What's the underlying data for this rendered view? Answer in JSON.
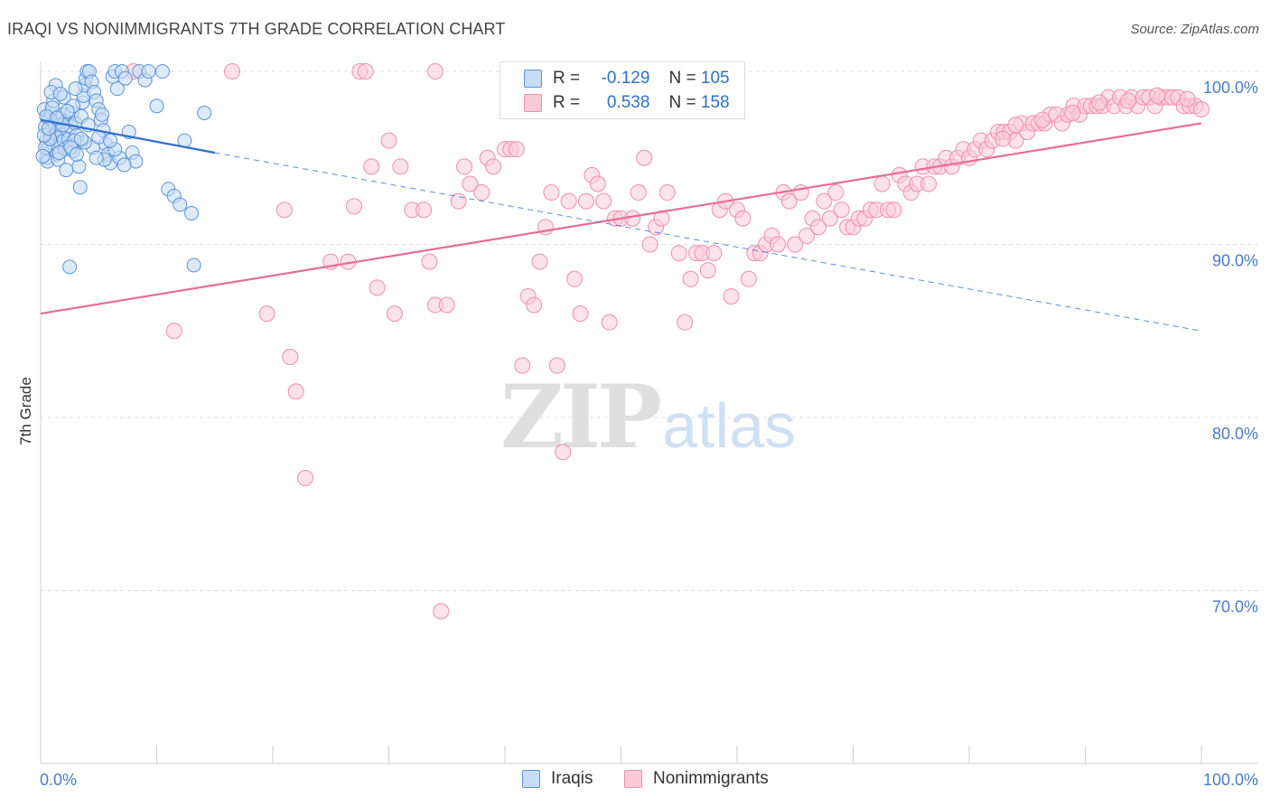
{
  "title": "IRAQI VS NONIMMIGRANTS 7TH GRADE CORRELATION CHART",
  "source": "Source: ZipAtlas.com",
  "watermark": {
    "zip": "ZIP",
    "atlas": "atlas"
  },
  "legend_stats": {
    "iraqis": {
      "r_label": "R =",
      "r": "-0.129",
      "n_label": "N =",
      "n": "105"
    },
    "nonimmigrants": {
      "r_label": "R =",
      "r": "0.538",
      "n_label": "N =",
      "n": "158"
    }
  },
  "colors": {
    "iraqis_fill": "#c7dcf5",
    "iraqis_stroke": "#5b93d6",
    "iraqis_line": "#2f6fcf",
    "non_fill": "#f9cbd9",
    "non_stroke": "#ee8fae",
    "non_line": "#e86c97",
    "grid": "#dedede",
    "axis_text": "#4a7cc2"
  },
  "chart_data": {
    "type": "scatter",
    "title": "IRAQI VS NONIMMIGRANTS 7TH GRADE CORRELATION CHART",
    "xlabel": "",
    "ylabel": "7th Grade",
    "xlim": [
      0,
      100
    ],
    "ylim": [
      61,
      101
    ],
    "x_tick_labels": [
      "0.0%",
      "100.0%"
    ],
    "y_ticks": [
      70,
      80,
      90,
      100
    ],
    "y_tick_labels": [
      "70.0%",
      "80.0%",
      "90.0%",
      "100.0%"
    ],
    "legend": [
      "Iraqis",
      "Nonimmigrants"
    ],
    "series": [
      {
        "name": "Iraqis",
        "trend": {
          "x0": 0,
          "y0": 97.2,
          "x1": 15,
          "y1": 95.3,
          "dash_x1": 100,
          "dash_y1": 85.0
        },
        "points": [
          [
            0.3,
            97.8
          ],
          [
            0.4,
            96.8
          ],
          [
            0.5,
            96.0
          ],
          [
            0.6,
            95.5
          ],
          [
            0.5,
            95.0
          ],
          [
            0.7,
            97.3
          ],
          [
            0.8,
            96.5
          ],
          [
            0.9,
            97.6
          ],
          [
            1.0,
            96.2
          ],
          [
            1.1,
            95.8
          ],
          [
            1.2,
            97.0
          ],
          [
            1.3,
            96.4
          ],
          [
            1.4,
            95.2
          ],
          [
            1.5,
            97.4
          ],
          [
            1.6,
            96.9
          ],
          [
            1.7,
            95.9
          ],
          [
            1.8,
            96.3
          ],
          [
            1.9,
            97.5
          ],
          [
            2.0,
            96.0
          ],
          [
            2.1,
            95.5
          ],
          [
            2.2,
            97.1
          ],
          [
            2.3,
            96.6
          ],
          [
            2.4,
            96.1
          ],
          [
            2.5,
            95.7
          ],
          [
            2.6,
            96.8
          ],
          [
            2.7,
            97.6
          ],
          [
            2.8,
            95.4
          ],
          [
            3.0,
            97.0
          ],
          [
            3.1,
            96.3
          ],
          [
            3.2,
            95.9
          ],
          [
            3.3,
            94.5
          ],
          [
            3.5,
            97.4
          ],
          [
            3.6,
            98.2
          ],
          [
            3.7,
            98.6
          ],
          [
            3.8,
            99.2
          ],
          [
            3.9,
            99.6
          ],
          [
            4.0,
            100.0
          ],
          [
            4.2,
            100.0
          ],
          [
            4.4,
            99.4
          ],
          [
            4.6,
            98.8
          ],
          [
            4.8,
            98.3
          ],
          [
            5.0,
            97.8
          ],
          [
            5.2,
            97.2
          ],
          [
            5.4,
            96.6
          ],
          [
            5.6,
            95.8
          ],
          [
            5.8,
            95.2
          ],
          [
            6.0,
            94.7
          ],
          [
            6.2,
            99.7
          ],
          [
            6.4,
            100.0
          ],
          [
            6.6,
            99.0
          ],
          [
            7.0,
            100.0
          ],
          [
            7.3,
            99.6
          ],
          [
            7.6,
            96.5
          ],
          [
            7.9,
            95.3
          ],
          [
            8.2,
            94.8
          ],
          [
            8.5,
            100.0
          ],
          [
            9.0,
            99.5
          ],
          [
            9.3,
            100.0
          ],
          [
            10.0,
            98.0
          ],
          [
            10.5,
            100.0
          ],
          [
            11.0,
            93.2
          ],
          [
            11.5,
            92.8
          ],
          [
            12.0,
            92.3
          ],
          [
            12.4,
            96.0
          ],
          [
            13.0,
            91.8
          ],
          [
            13.2,
            88.8
          ],
          [
            14.1,
            97.6
          ],
          [
            3.4,
            93.3
          ],
          [
            2.5,
            88.7
          ],
          [
            1.3,
            99.2
          ],
          [
            1.1,
            98.3
          ],
          [
            0.9,
            98.8
          ],
          [
            2.0,
            98.5
          ],
          [
            2.8,
            98.0
          ],
          [
            3.0,
            99.0
          ],
          [
            1.7,
            98.7
          ],
          [
            0.6,
            94.8
          ],
          [
            0.4,
            95.6
          ],
          [
            1.5,
            94.9
          ],
          [
            2.2,
            94.3
          ],
          [
            4.5,
            95.6
          ],
          [
            5.0,
            96.2
          ],
          [
            6.8,
            95.0
          ],
          [
            7.2,
            94.6
          ],
          [
            6.4,
            95.5
          ],
          [
            5.5,
            94.9
          ],
          [
            4.8,
            95.0
          ],
          [
            3.8,
            95.9
          ],
          [
            2.9,
            96.0
          ],
          [
            1.9,
            96.9
          ],
          [
            0.8,
            96.1
          ],
          [
            1.0,
            97.9
          ],
          [
            0.5,
            97.4
          ],
          [
            0.3,
            96.3
          ],
          [
            0.2,
            95.1
          ],
          [
            1.6,
            95.3
          ],
          [
            2.6,
            95.6
          ],
          [
            3.5,
            96.1
          ],
          [
            4.1,
            96.9
          ],
          [
            5.3,
            97.5
          ],
          [
            6.0,
            96.0
          ],
          [
            3.1,
            95.2
          ],
          [
            2.3,
            97.7
          ],
          [
            1.4,
            97.3
          ],
          [
            0.7,
            96.7
          ]
        ]
      },
      {
        "name": "Nonimmigrants",
        "trend": {
          "x0": 0,
          "y0": 86.0,
          "x1": 100,
          "y1": 97.0
        },
        "points": [
          [
            16.5,
            100.0
          ],
          [
            27.5,
            100.0
          ],
          [
            28.0,
            100.0
          ],
          [
            34.0,
            100.0
          ],
          [
            8.0,
            100.0
          ],
          [
            11.5,
            85.0
          ],
          [
            19.5,
            86.0
          ],
          [
            21.5,
            83.5
          ],
          [
            22.0,
            81.5
          ],
          [
            22.8,
            76.5
          ],
          [
            21.0,
            92.0
          ],
          [
            25.0,
            89.0
          ],
          [
            26.5,
            89.0
          ],
          [
            27.0,
            92.2
          ],
          [
            28.5,
            94.5
          ],
          [
            29.0,
            87.5
          ],
          [
            30.0,
            96.0
          ],
          [
            30.5,
            86.0
          ],
          [
            31.0,
            94.5
          ],
          [
            32.0,
            92.0
          ],
          [
            33.0,
            92.0
          ],
          [
            33.5,
            89.0
          ],
          [
            34.0,
            86.5
          ],
          [
            34.5,
            68.8
          ],
          [
            35.0,
            86.5
          ],
          [
            36.0,
            92.5
          ],
          [
            36.5,
            94.5
          ],
          [
            37.0,
            93.5
          ],
          [
            38.0,
            93.0
          ],
          [
            38.5,
            95.0
          ],
          [
            39.0,
            94.5
          ],
          [
            40.0,
            95.5
          ],
          [
            40.5,
            95.5
          ],
          [
            41.0,
            95.5
          ],
          [
            41.5,
            83.0
          ],
          [
            42.0,
            87.0
          ],
          [
            42.5,
            86.5
          ],
          [
            43.0,
            89.0
          ],
          [
            43.5,
            91.0
          ],
          [
            44.0,
            93.0
          ],
          [
            44.5,
            83.0
          ],
          [
            45.0,
            78.0
          ],
          [
            45.5,
            92.5
          ],
          [
            46.0,
            88.0
          ],
          [
            46.5,
            86.0
          ],
          [
            47.0,
            92.5
          ],
          [
            47.5,
            94.0
          ],
          [
            48.0,
            93.5
          ],
          [
            48.5,
            92.5
          ],
          [
            49.0,
            85.5
          ],
          [
            49.5,
            91.5
          ],
          [
            50.0,
            91.5
          ],
          [
            51.0,
            91.5
          ],
          [
            51.5,
            93.0
          ],
          [
            52.0,
            95.0
          ],
          [
            52.5,
            90.0
          ],
          [
            53.0,
            91.0
          ],
          [
            53.5,
            91.5
          ],
          [
            54.0,
            93.0
          ],
          [
            55.0,
            89.5
          ],
          [
            55.5,
            85.5
          ],
          [
            56.0,
            88.0
          ],
          [
            56.5,
            89.5
          ],
          [
            57.0,
            89.5
          ],
          [
            57.5,
            88.5
          ],
          [
            58.0,
            89.5
          ],
          [
            58.5,
            92.0
          ],
          [
            59.0,
            92.5
          ],
          [
            59.5,
            87.0
          ],
          [
            60.0,
            92.0
          ],
          [
            60.5,
            91.5
          ],
          [
            61.0,
            88.0
          ],
          [
            61.5,
            89.5
          ],
          [
            62.0,
            89.5
          ],
          [
            62.5,
            90.0
          ],
          [
            63.0,
            90.5
          ],
          [
            63.5,
            90.0
          ],
          [
            64.0,
            93.0
          ],
          [
            64.5,
            92.5
          ],
          [
            65.0,
            90.0
          ],
          [
            65.5,
            93.0
          ],
          [
            66.0,
            90.5
          ],
          [
            66.5,
            91.5
          ],
          [
            67.0,
            91.0
          ],
          [
            67.5,
            92.5
          ],
          [
            68.0,
            91.5
          ],
          [
            68.5,
            93.0
          ],
          [
            69.0,
            92.0
          ],
          [
            69.5,
            91.0
          ],
          [
            70.0,
            91.0
          ],
          [
            70.5,
            91.5
          ],
          [
            71.0,
            91.5
          ],
          [
            71.5,
            92.0
          ],
          [
            72.0,
            92.0
          ],
          [
            72.5,
            93.5
          ],
          [
            73.0,
            92.0
          ],
          [
            73.5,
            92.0
          ],
          [
            74.0,
            94.0
          ],
          [
            74.5,
            93.5
          ],
          [
            75.0,
            93.0
          ],
          [
            75.5,
            93.5
          ],
          [
            76.0,
            94.5
          ],
          [
            76.5,
            93.5
          ],
          [
            77.0,
            94.5
          ],
          [
            77.5,
            94.5
          ],
          [
            78.0,
            95.0
          ],
          [
            78.5,
            94.5
          ],
          [
            79.0,
            95.0
          ],
          [
            79.5,
            95.5
          ],
          [
            80.0,
            95.0
          ],
          [
            80.5,
            95.5
          ],
          [
            81.0,
            96.0
          ],
          [
            81.5,
            95.5
          ],
          [
            82.0,
            96.0
          ],
          [
            82.5,
            96.5
          ],
          [
            83.0,
            96.5
          ],
          [
            83.5,
            96.5
          ],
          [
            84.0,
            96.0
          ],
          [
            84.5,
            97.0
          ],
          [
            85.0,
            96.5
          ],
          [
            85.5,
            97.0
          ],
          [
            86.0,
            97.0
          ],
          [
            86.5,
            97.0
          ],
          [
            87.0,
            97.5
          ],
          [
            87.5,
            97.5
          ],
          [
            88.0,
            97.0
          ],
          [
            88.5,
            97.5
          ],
          [
            89.0,
            98.0
          ],
          [
            89.5,
            97.5
          ],
          [
            90.0,
            98.0
          ],
          [
            90.5,
            98.0
          ],
          [
            91.0,
            98.0
          ],
          [
            91.5,
            98.0
          ],
          [
            92.0,
            98.5
          ],
          [
            92.5,
            98.0
          ],
          [
            93.0,
            98.5
          ],
          [
            93.5,
            98.0
          ],
          [
            94.0,
            98.5
          ],
          [
            94.5,
            98.0
          ],
          [
            95.0,
            98.5
          ],
          [
            95.5,
            98.5
          ],
          [
            96.0,
            98.0
          ],
          [
            96.5,
            98.5
          ],
          [
            97.0,
            98.5
          ],
          [
            97.5,
            98.5
          ],
          [
            98.0,
            98.5
          ],
          [
            98.5,
            98.0
          ],
          [
            99.0,
            98.0
          ],
          [
            99.5,
            98.0
          ],
          [
            100.0,
            97.8
          ],
          [
            84.0,
            96.9
          ],
          [
            86.3,
            97.2
          ],
          [
            88.9,
            97.6
          ],
          [
            91.2,
            98.2
          ],
          [
            93.7,
            98.3
          ],
          [
            96.2,
            98.6
          ],
          [
            98.8,
            98.4
          ],
          [
            82.9,
            96.1
          ]
        ]
      }
    ]
  },
  "bottom_legend": {
    "iraqis": "Iraqis",
    "nonimmigrants": "Nonimmigrants"
  }
}
